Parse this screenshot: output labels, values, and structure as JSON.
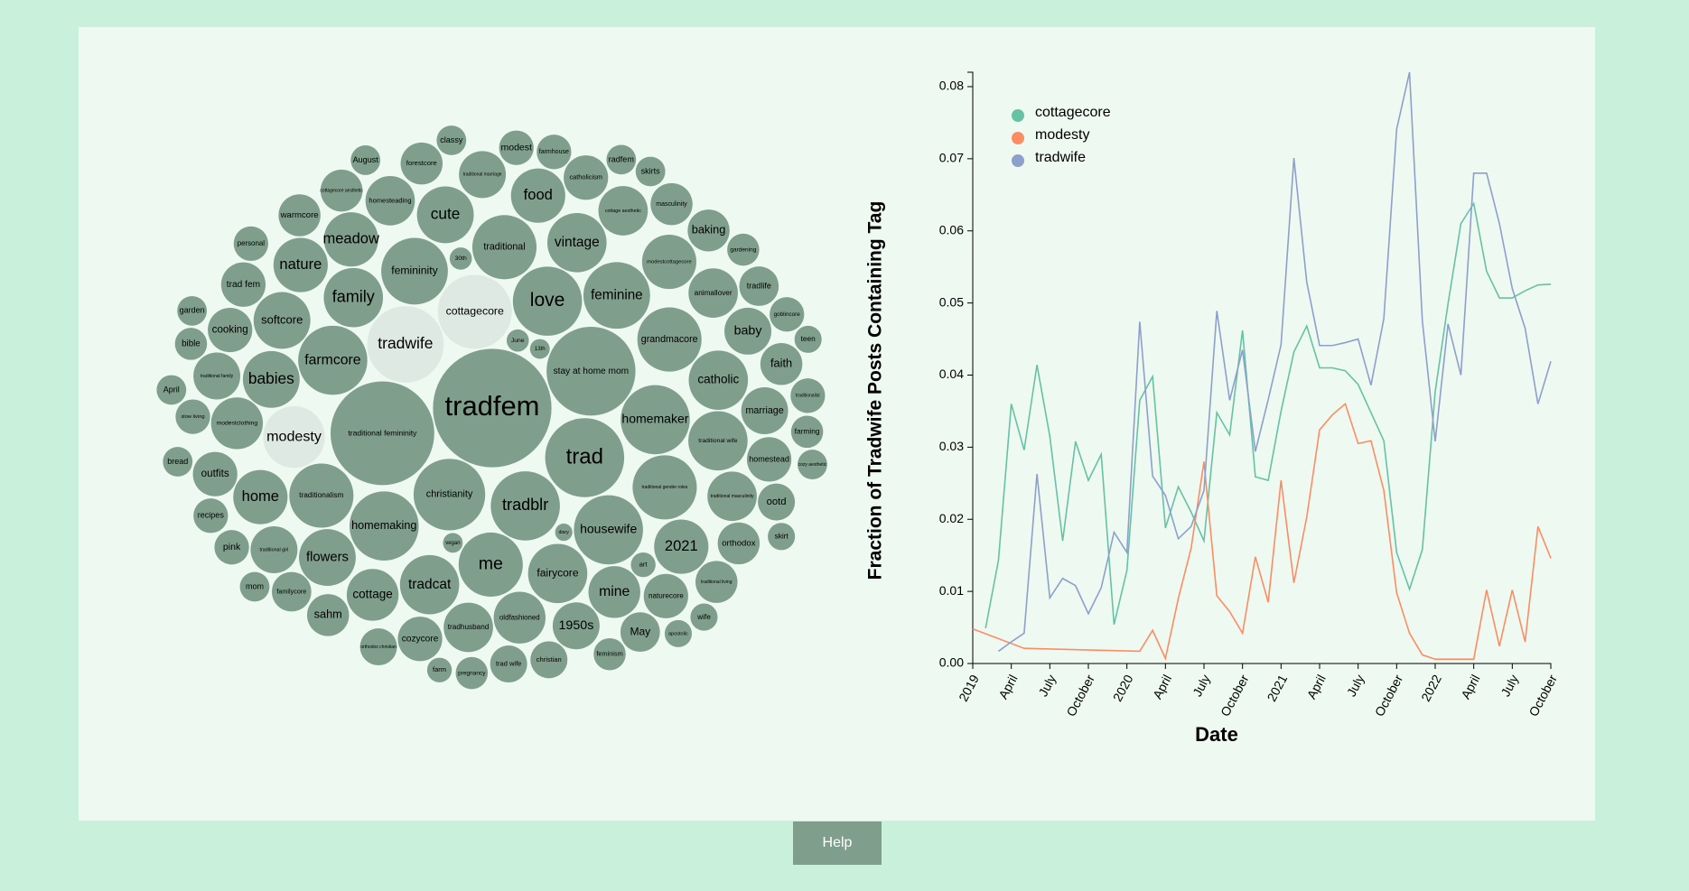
{
  "chart_data": [
    {
      "type": "bubble",
      "color": "#7f9f8c",
      "highlight_color": "#dfe9e3",
      "categories": [
        "tradfem",
        "traditional femininity",
        "stay at home mom",
        "trad",
        "tradwife",
        "cottagecore",
        "christianity",
        "tradblr",
        "love",
        "homemaker",
        "farmcore",
        "homemaking",
        "housewife",
        "femininity",
        "feminine",
        "me",
        "traditional",
        "grandmacore",
        "traditional gender roles",
        "traditionalism",
        "modesty",
        "family",
        "fairycore",
        "vintage",
        "tradcat",
        "catholic",
        "traditional wife",
        "babies",
        "softcore",
        "cute",
        "flowers",
        "meadow",
        "modestcottagecore",
        "2021",
        "home",
        "nature",
        "food",
        "mine",
        "oldfashioned",
        "cottage",
        "modestclothing",
        "animallover",
        "traditional masculinity",
        "tradhusband",
        "homesteading",
        "cottage aesthetic",
        "baby",
        "marriage",
        "1950s",
        "traditional girl",
        "traditional family",
        "traditional marriage",
        "cooking",
        "homestead",
        "naturecore",
        "cozycore",
        "outfits",
        "trad fem",
        "catholicism",
        "faith",
        "orthodox",
        "sahm",
        "warmcore",
        "cottagecore aesthetic",
        "forestcore",
        "masculinity",
        "baking",
        "traditional living",
        "familycore",
        "tradlife",
        "May",
        "ootd",
        "christian",
        "trad wife",
        "orthodox christian",
        "slow living",
        "pink",
        "recipes",
        "personal",
        "modest",
        "farmhouse",
        "goblincore",
        "traditionalist",
        "bible",
        "gardening",
        "farming",
        "feminism",
        "pregnancy",
        "mom",
        "bread",
        "April",
        "garden",
        "August",
        "classy",
        "radfem",
        "skirts",
        "cozy aesthetic",
        "teen",
        "skirt",
        "wife",
        "apostolic",
        "art",
        "farm",
        "June",
        "30th",
        "13th",
        "vegan",
        "diary"
      ],
      "values": [
        2304,
        1764,
        1296,
        1024,
        961,
        900,
        841,
        784,
        784,
        784,
        784,
        784,
        784,
        729,
        729,
        676,
        676,
        676,
        676,
        676,
        625,
        576,
        576,
        576,
        576,
        576,
        576,
        529,
        529,
        529,
        529,
        484,
        484,
        484,
        484,
        484,
        484,
        441,
        441,
        441,
        441,
        400,
        400,
        400,
        400,
        400,
        361,
        361,
        361,
        361,
        361,
        361,
        324,
        324,
        324,
        324,
        324,
        324,
        324,
        289,
        289,
        289,
        289,
        289,
        289,
        289,
        289,
        289,
        256,
        256,
        256,
        225,
        225,
        225,
        225,
        196,
        196,
        196,
        196,
        196,
        196,
        196,
        196,
        169,
        169,
        169,
        169,
        169,
        144,
        144,
        144,
        144,
        144,
        144,
        144,
        144,
        144,
        121,
        121,
        121,
        121,
        100,
        100,
        81,
        81,
        64,
        64,
        49
      ]
    },
    {
      "type": "line",
      "xlabel": "Date",
      "ylabel": "Fraction of Tradwife Posts Containing Tag",
      "xlim": [
        "2019-01",
        "2022-10"
      ],
      "ylim": [
        0,
        0.082
      ],
      "xticks": [
        {
          "value": "2019-01",
          "label": "2019"
        },
        {
          "value": "2019-04",
          "label": "April"
        },
        {
          "value": "2019-07",
          "label": "July"
        },
        {
          "value": "2019-10",
          "label": "October"
        },
        {
          "value": "2020-01",
          "label": "2020"
        },
        {
          "value": "2020-04",
          "label": "April"
        },
        {
          "value": "2020-07",
          "label": "July"
        },
        {
          "value": "2020-10",
          "label": "October"
        },
        {
          "value": "2021-01",
          "label": "2021"
        },
        {
          "value": "2021-04",
          "label": "April"
        },
        {
          "value": "2021-07",
          "label": "July"
        },
        {
          "value": "2021-10",
          "label": "October"
        },
        {
          "value": "2022-01",
          "label": "2022"
        },
        {
          "value": "2022-04",
          "label": "April"
        },
        {
          "value": "2022-07",
          "label": "July"
        },
        {
          "value": "2022-10",
          "label": "October"
        }
      ],
      "yticks": [
        {
          "value": 0,
          "label": "0.00"
        },
        {
          "value": 0.01,
          "label": "0.01"
        },
        {
          "value": 0.02,
          "label": "0.02"
        },
        {
          "value": 0.03,
          "label": "0.03"
        },
        {
          "value": 0.04,
          "label": "0.04"
        },
        {
          "value": 0.05,
          "label": "0.05"
        },
        {
          "value": 0.06,
          "label": "0.06"
        },
        {
          "value": 0.07,
          "label": "0.07"
        },
        {
          "value": 0.08,
          "label": "0.08"
        }
      ],
      "legend": "upper left",
      "series": [
        {
          "name": "cottagecore",
          "color": "#66c2a5",
          "x": [
            "2019-02",
            "2019-03",
            "2019-04",
            "2019-05",
            "2019-06",
            "2019-07",
            "2019-08",
            "2019-09",
            "2019-10",
            "2019-11",
            "2019-12",
            "2020-01",
            "2020-02",
            "2020-03",
            "2020-04",
            "2020-05",
            "2020-06",
            "2020-07",
            "2020-08",
            "2020-09",
            "2020-10",
            "2020-11",
            "2020-12",
            "2021-01",
            "2021-02",
            "2021-03",
            "2021-04",
            "2021-05",
            "2021-06",
            "2021-07",
            "2021-08",
            "2021-09",
            "2021-10",
            "2021-11",
            "2021-12",
            "2022-01",
            "2022-02",
            "2022-03",
            "2022-04",
            "2022-05",
            "2022-06",
            "2022-07",
            "2022-08",
            "2022-09",
            "2022-10"
          ],
          "values": [
            0.0049,
            0.0143,
            0.036,
            0.0296,
            0.0414,
            0.0315,
            0.017,
            0.0308,
            0.0254,
            0.029,
            0.0054,
            0.0129,
            0.0365,
            0.0398,
            0.0188,
            0.0245,
            0.021,
            0.017,
            0.0348,
            0.0317,
            0.0462,
            0.0259,
            0.0254,
            0.035,
            0.0432,
            0.0468,
            0.041,
            0.041,
            0.0406,
            0.0387,
            0.0348,
            0.0309,
            0.0154,
            0.0103,
            0.0158,
            0.0377,
            0.0499,
            0.061,
            0.0638,
            0.0544,
            0.0507,
            0.0507,
            0.0517,
            0.0525,
            0.0526
          ]
        },
        {
          "name": "modesty",
          "color": "#fc8d62",
          "x": [
            "2019-01",
            "2019-05",
            "2020-02",
            "2020-03",
            "2020-04",
            "2020-05",
            "2020-06",
            "2020-07",
            "2020-08",
            "2020-09",
            "2020-10",
            "2020-11",
            "2020-12",
            "2021-01",
            "2021-02",
            "2021-03",
            "2021-04",
            "2021-05",
            "2021-06",
            "2021-07",
            "2021-08",
            "2021-09",
            "2021-10",
            "2021-11",
            "2021-12",
            "2022-01",
            "2022-04",
            "2022-05",
            "2022-06",
            "2022-07",
            "2022-08",
            "2022-09",
            "2022-10"
          ],
          "values": [
            0.0048,
            0.0021,
            0.0017,
            0.0046,
            0.0007,
            0.009,
            0.016,
            0.028,
            0.0094,
            0.0072,
            0.0042,
            0.0148,
            0.0085,
            0.0254,
            0.0112,
            0.0203,
            0.0324,
            0.0345,
            0.036,
            0.0305,
            0.0309,
            0.024,
            0.0098,
            0.0042,
            0.0012,
            0.0006,
            0.0006,
            0.0102,
            0.0024,
            0.0102,
            0.003,
            0.019,
            0.0146
          ]
        },
        {
          "name": "tradwife",
          "color": "#8da0cb",
          "x": [
            "2019-03",
            "2019-04",
            "2019-05",
            "2019-06",
            "2019-07",
            "2019-08",
            "2019-09",
            "2019-10",
            "2019-11",
            "2019-12",
            "2020-01",
            "2020-02",
            "2020-03",
            "2020-04",
            "2020-05",
            "2020-06",
            "2020-07",
            "2020-08",
            "2020-09",
            "2020-10",
            "2020-11",
            "2020-12",
            "2021-01",
            "2021-02",
            "2021-03",
            "2021-04",
            "2021-05",
            "2021-06",
            "2021-07",
            "2021-08",
            "2021-09",
            "2021-10",
            "2021-11",
            "2021-12",
            "2022-01",
            "2022-02",
            "2022-03",
            "2022-04",
            "2022-05",
            "2022-06",
            "2022-07",
            "2022-08",
            "2022-09",
            "2022-10"
          ],
          "values": [
            0.0017,
            0.003,
            0.0042,
            0.0263,
            0.0091,
            0.0118,
            0.0108,
            0.0069,
            0.0105,
            0.0182,
            0.0154,
            0.0474,
            0.026,
            0.0233,
            0.0173,
            0.019,
            0.024,
            0.0489,
            0.0365,
            0.0435,
            0.0294,
            0.0366,
            0.0442,
            0.0701,
            0.0529,
            0.0441,
            0.0441,
            0.0445,
            0.045,
            0.0386,
            0.0478,
            0.0741,
            0.082,
            0.0475,
            0.0308,
            0.0471,
            0.04,
            0.068,
            0.068,
            0.061,
            0.052,
            0.0465,
            0.036,
            0.0419
          ]
        }
      ]
    }
  ],
  "help_button": "Help"
}
